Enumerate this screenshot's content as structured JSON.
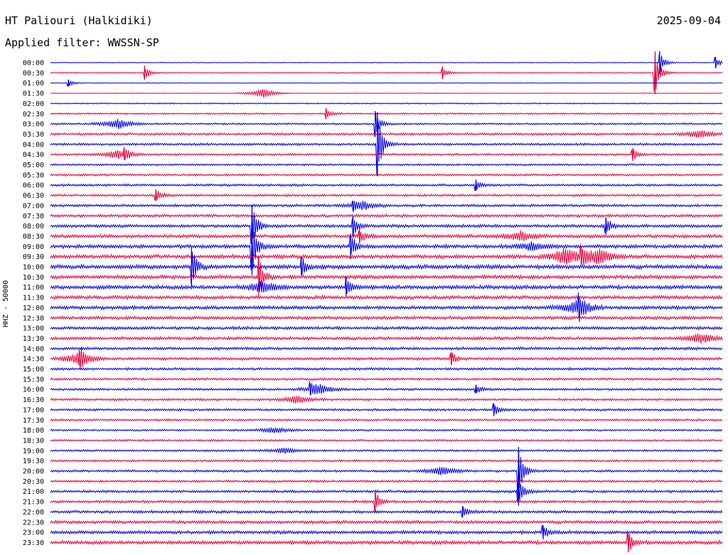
{
  "header": {
    "station": "HT Paliouri (Halkidiki)",
    "date": "2025-09-04",
    "filter_label": "Applied filter: WWSSN-SP"
  },
  "channel_label": "HHZ - 50000",
  "colors": {
    "trace_a": "#0000e6",
    "trace_b": "#e6003c",
    "text": "#000000"
  },
  "chart_data": {
    "type": "line",
    "title": "HT Paliouri (Halkidiki)",
    "ylabel": "HHZ - 50000",
    "rows": [
      "00:00",
      "00:30",
      "01:00",
      "01:30",
      "02:00",
      "02:30",
      "03:00",
      "03:30",
      "04:00",
      "04:30",
      "05:00",
      "05:30",
      "06:00",
      "06:30",
      "07:00",
      "07:30",
      "08:00",
      "08:30",
      "09:00",
      "09:30",
      "10:00",
      "10:30",
      "11:00",
      "11:30",
      "12:00",
      "12:30",
      "13:00",
      "13:30",
      "14:00",
      "14:30",
      "15:00",
      "15:30",
      "16:00",
      "16:30",
      "17:00",
      "17:30",
      "18:00",
      "18:30",
      "19:00",
      "19:30",
      "20:00",
      "20:30",
      "21:00",
      "21:30",
      "22:00",
      "22:30",
      "23:00",
      "23:30"
    ],
    "row_minutes": 30,
    "trace_colors": [
      "#0000e6",
      "#e6003c"
    ],
    "noise_level": [
      0.6,
      0.8,
      0.5,
      0.4,
      1.0,
      1.2,
      1.4,
      1.8,
      1.8,
      1.6,
      1.5,
      1.6,
      1.8,
      1.8,
      2.0,
      2.2,
      2.4,
      2.6,
      2.8,
      3.0,
      3.2,
      3.0,
      3.0,
      2.8,
      2.8,
      2.6,
      2.4,
      2.4,
      2.2,
      2.2,
      2.0,
      1.8,
      1.8,
      1.8,
      1.8,
      1.6,
      1.5,
      1.5,
      1.6,
      1.6,
      1.8,
      1.8,
      2.0,
      2.0,
      2.2,
      2.4,
      2.6,
      2.8
    ],
    "events": [
      {
        "row": 0,
        "minute": 27.2,
        "amp": 16
      },
      {
        "row": 0,
        "minute": 29.7,
        "amp": 8
      },
      {
        "row": 1,
        "minute": 4.2,
        "amp": 10
      },
      {
        "row": 1,
        "minute": 17.5,
        "amp": 9
      },
      {
        "row": 1,
        "minute": 27.0,
        "amp": 30
      },
      {
        "row": 2,
        "minute": 0.8,
        "amp": 5
      },
      {
        "row": 5,
        "minute": 12.3,
        "amp": 8
      },
      {
        "row": 6,
        "minute": 14.5,
        "amp": 18
      },
      {
        "row": 8,
        "minute": 14.6,
        "amp": 45
      },
      {
        "row": 9,
        "minute": 3.3,
        "amp": 8
      },
      {
        "row": 9,
        "minute": 26.0,
        "amp": 9
      },
      {
        "row": 12,
        "minute": 19.0,
        "amp": 8
      },
      {
        "row": 13,
        "minute": 4.7,
        "amp": 8
      },
      {
        "row": 14,
        "minute": 13.5,
        "amp": 7
      },
      {
        "row": 16,
        "minute": 9.0,
        "amp": 30
      },
      {
        "row": 16,
        "minute": 13.5,
        "amp": 14
      },
      {
        "row": 16,
        "minute": 24.8,
        "amp": 12
      },
      {
        "row": 17,
        "minute": 13.8,
        "amp": 10
      },
      {
        "row": 18,
        "minute": 9.0,
        "amp": 40
      },
      {
        "row": 18,
        "minute": 13.4,
        "amp": 18
      },
      {
        "row": 19,
        "minute": 23.7,
        "amp": 12
      },
      {
        "row": 20,
        "minute": 6.3,
        "amp": 28
      },
      {
        "row": 20,
        "minute": 11.2,
        "amp": 14
      },
      {
        "row": 21,
        "minute": 9.3,
        "amp": 28
      },
      {
        "row": 22,
        "minute": 13.2,
        "amp": 14
      },
      {
        "row": 24,
        "minute": 23.6,
        "amp": 16
      },
      {
        "row": 29,
        "minute": 1.3,
        "amp": 10
      },
      {
        "row": 29,
        "minute": 17.9,
        "amp": 9
      },
      {
        "row": 32,
        "minute": 11.6,
        "amp": 8
      },
      {
        "row": 32,
        "minute": 19.0,
        "amp": 6
      },
      {
        "row": 34,
        "minute": 19.8,
        "amp": 9
      },
      {
        "row": 40,
        "minute": 20.9,
        "amp": 34
      },
      {
        "row": 42,
        "minute": 20.9,
        "amp": 20
      },
      {
        "row": 43,
        "minute": 14.5,
        "amp": 15
      },
      {
        "row": 44,
        "minute": 18.4,
        "amp": 8
      },
      {
        "row": 46,
        "minute": 22.0,
        "amp": 10
      },
      {
        "row": 47,
        "minute": 25.8,
        "amp": 14
      }
    ],
    "bursts": [
      {
        "row": 3,
        "minute": 9.5,
        "amp": 7
      },
      {
        "row": 6,
        "minute": 3.0,
        "amp": 7
      },
      {
        "row": 7,
        "minute": 29.0,
        "amp": 6
      },
      {
        "row": 9,
        "minute": 3.0,
        "amp": 6
      },
      {
        "row": 14,
        "minute": 14.0,
        "amp": 5
      },
      {
        "row": 17,
        "minute": 21.0,
        "amp": 7
      },
      {
        "row": 18,
        "minute": 21.5,
        "amp": 6
      },
      {
        "row": 19,
        "minute": 23.0,
        "amp": 12
      },
      {
        "row": 19,
        "minute": 24.5,
        "amp": 12
      },
      {
        "row": 22,
        "minute": 9.5,
        "amp": 8
      },
      {
        "row": 24,
        "minute": 23.5,
        "amp": 9
      },
      {
        "row": 27,
        "minute": 29.0,
        "amp": 7
      },
      {
        "row": 29,
        "minute": 1.3,
        "amp": 9
      },
      {
        "row": 32,
        "minute": 12.0,
        "amp": 6
      },
      {
        "row": 33,
        "minute": 11.0,
        "amp": 5
      },
      {
        "row": 36,
        "minute": 10.0,
        "amp": 4
      },
      {
        "row": 38,
        "minute": 10.5,
        "amp": 4
      },
      {
        "row": 40,
        "minute": 17.5,
        "amp": 6
      }
    ]
  }
}
